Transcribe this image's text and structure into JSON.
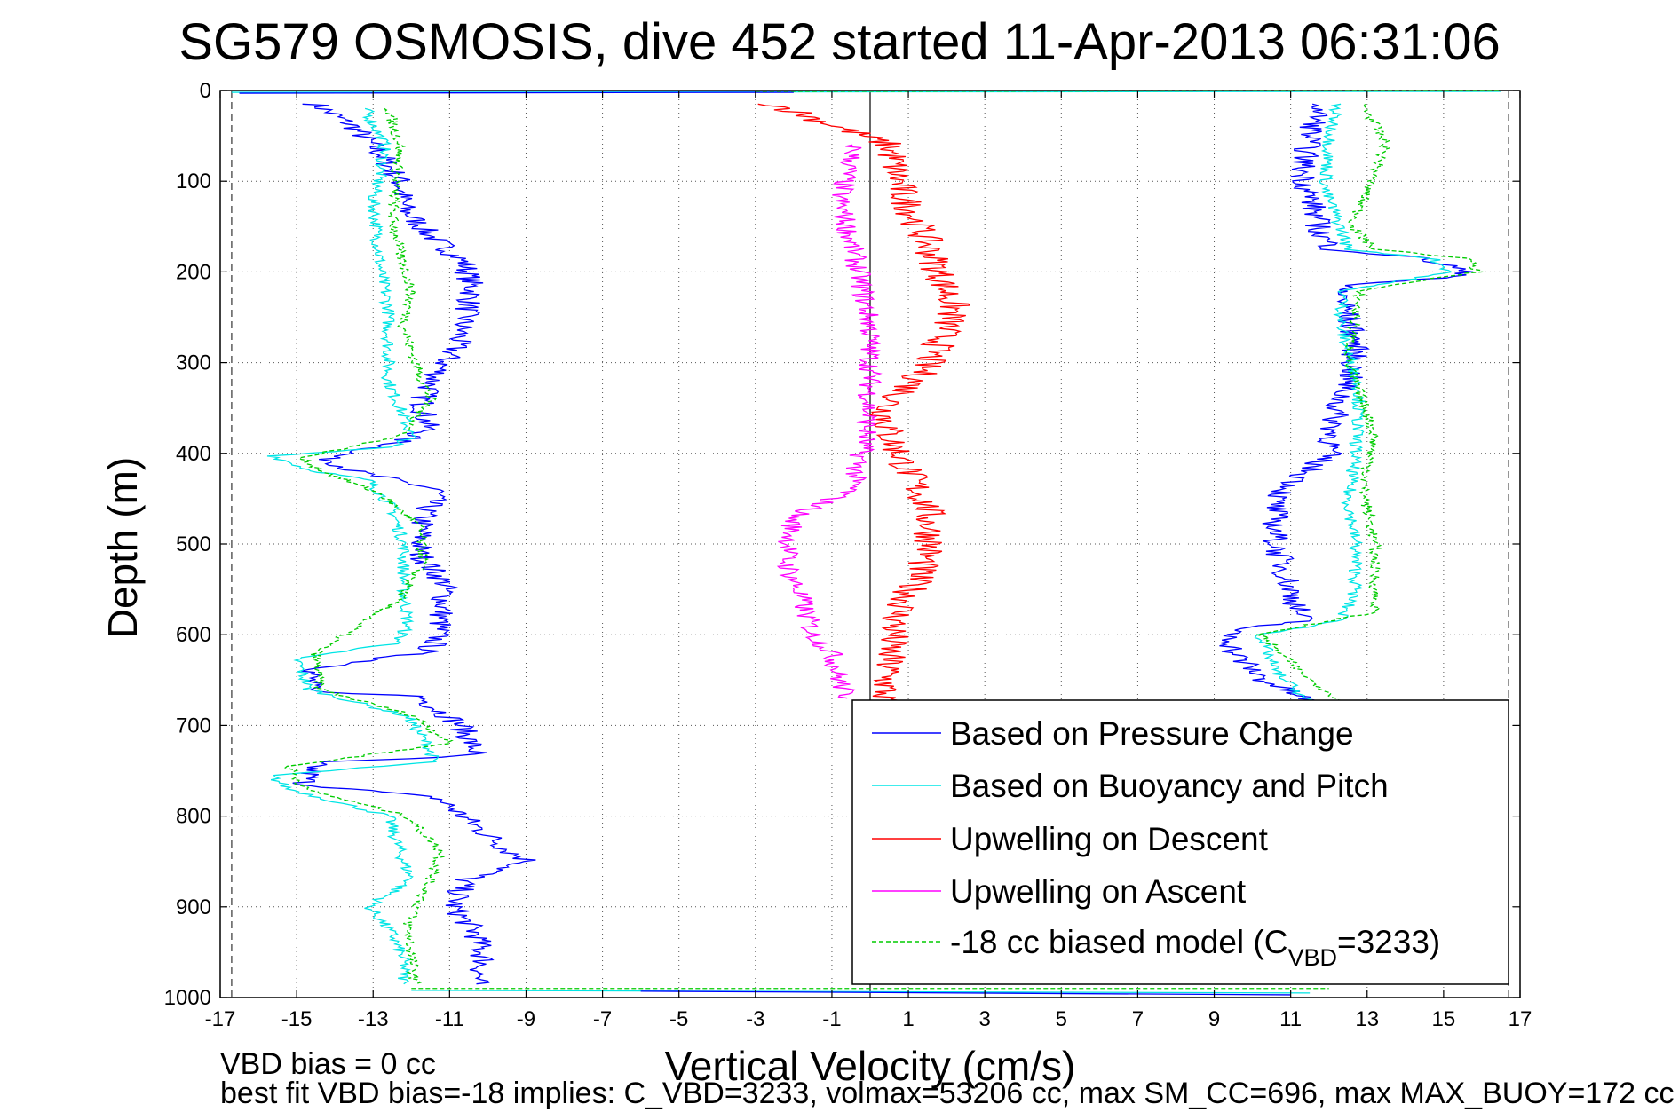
{
  "chart_data": {
    "type": "line",
    "title": "SG579 OSMOSIS, dive 452 started 11-Apr-2013 06:31:06",
    "xlabel": "Vertical Velocity (cm/s)",
    "ylabel": "Depth (m)",
    "xlim": [
      -17,
      17
    ],
    "ylim": [
      0,
      1000
    ],
    "y_reversed": true,
    "grid": true,
    "x_ticks": [
      -17,
      -15,
      -13,
      -11,
      -9,
      -7,
      -5,
      -3,
      -1,
      1,
      3,
      5,
      7,
      9,
      11,
      13,
      15,
      17
    ],
    "y_ticks": [
      0,
      100,
      200,
      300,
      400,
      500,
      600,
      700,
      800,
      900,
      1000
    ],
    "reference_line_x": 0,
    "dashed_bounds_x": [
      -16.7,
      16.7
    ],
    "legend_position": "bottom-right",
    "series": [
      {
        "name": "Based on Pressure Change",
        "color": "#0000ff",
        "style": "solid",
        "x": [
          -14.5,
          -13.5,
          -12.8,
          -12.3,
          -12.2,
          -11.5,
          -10.6,
          -10.4,
          -10.6,
          -10.8,
          -11.3,
          -11.7,
          -11.6,
          -12.5,
          -14.2,
          -13.5,
          -11.3,
          -11.7,
          -11.8,
          -11.1,
          -11.2,
          -11.3,
          -11.4,
          -11.6,
          -14.6,
          -14.7,
          -11.8,
          -10.7,
          -10.3,
          -11.2,
          -14.5,
          -14.8,
          -11.3,
          -10.5,
          -9.4,
          -8.9,
          -10.6,
          -10.9,
          -10.3,
          -10.1,
          -10.3
        ],
        "y": [
          15,
          40,
          70,
          100,
          130,
          160,
          190,
          220,
          250,
          280,
          310,
          340,
          375,
          390,
          405,
          420,
          440,
          470,
          510,
          545,
          575,
          600,
          610,
          618,
          640,
          662,
          668,
          700,
          730,
          735,
          740,
          765,
          780,
          805,
          840,
          850,
          870,
          900,
          930,
          960,
          985
        ]
      },
      {
        "name": "Based on Buoyancy and Pitch",
        "color": "#00e5e5",
        "style": "solid",
        "x": [
          -13.2,
          -12.7,
          -12.8,
          -13.0,
          -12.9,
          -12.8,
          -12.6,
          -12.6,
          -12.6,
          -12.3,
          -12.1,
          -12.0,
          -12.6,
          -15.6,
          -14.7,
          -13.1,
          -12.5,
          -12.2,
          -12.2,
          -12.1,
          -12.4,
          -15.0,
          -14.7,
          -12.1,
          -11.6,
          -11.4,
          -15.7,
          -15.2,
          -12.6,
          -12.3,
          -12.0,
          -13.1,
          -12.5,
          -12.2,
          -12.2
        ],
        "y": [
          20,
          60,
          90,
          120,
          160,
          200,
          240,
          280,
          320,
          350,
          370,
          383,
          393,
          403,
          418,
          430,
          460,
          500,
          550,
          590,
          610,
          625,
          660,
          690,
          720,
          740,
          755,
          770,
          800,
          840,
          870,
          900,
          930,
          960,
          985
        ]
      },
      {
        "name": "Upwelling on Descent",
        "color": "#ff0000",
        "style": "solid",
        "x": [
          -2.5,
          0.5,
          0.8,
          1.4,
          1.8,
          2.2,
          1.8,
          1.2,
          0.4,
          0.5,
          1.0,
          1.5,
          1.6,
          1.2,
          0.7,
          0.5,
          0.4,
          0.3
        ],
        "y": [
          15,
          60,
          110,
          160,
          200,
          240,
          280,
          320,
          350,
          380,
          420,
          460,
          500,
          540,
          580,
          620,
          660,
          680
        ]
      },
      {
        "name": "Upwelling on Ascent",
        "color": "#ff00ff",
        "style": "solid",
        "x": [
          -0.4,
          -0.8,
          -0.3,
          0.0,
          0.0,
          -0.1,
          -0.5,
          -2.0,
          -2.2,
          -1.8,
          -1.5,
          -1.0,
          -0.8,
          -0.6
        ],
        "y": [
          60,
          120,
          200,
          260,
          320,
          380,
          440,
          470,
          520,
          560,
          600,
          620,
          650,
          670
        ]
      },
      {
        "name": "-18 cc biased model (C",
        "color": "#00cc00",
        "style": "dashed",
        "x": [
          -12.6,
          -12.3,
          -12.4,
          -12.5,
          -12.3,
          -12.0,
          -12.2,
          -11.9,
          -11.5,
          -12.2,
          -14.9,
          -14.3,
          -12.8,
          -11.8,
          -11.7,
          -12.3,
          -14.5,
          -14.4,
          -11.9,
          -11.0,
          -15.2,
          -14.8,
          -12.1,
          -11.2,
          -11.6,
          -12.1,
          -11.9
        ],
        "y": [
          20,
          60,
          100,
          140,
          180,
          220,
          260,
          300,
          340,
          380,
          405,
          420,
          445,
          480,
          520,
          560,
          620,
          660,
          690,
          720,
          745,
          770,
          800,
          840,
          880,
          920,
          985
        ]
      }
    ],
    "ascent_series": [
      {
        "name": "Based on Pressure Change",
        "x": [
          11.8,
          11.5,
          11.3,
          11.6,
          11.8,
          12.1,
          14.4,
          15.3,
          15.6,
          12.3,
          12.5,
          12.7,
          12.6,
          12.2,
          12.0,
          10.6,
          10.6,
          11.0,
          11.3,
          9.4,
          9.5,
          10.3,
          11.6
        ],
        "y": [
          15,
          50,
          90,
          130,
          160,
          175,
          185,
          195,
          205,
          215,
          250,
          280,
          310,
          350,
          400,
          450,
          500,
          550,
          585,
          595,
          620,
          650,
          675
        ]
      },
      {
        "name": "Based on Buoyancy and Pitch",
        "x": [
          12.2,
          12.0,
          11.9,
          12.3,
          12.5,
          14.7,
          15.2,
          12.4,
          12.3,
          12.8,
          12.7,
          12.5,
          12.7,
          12.7,
          12.3,
          10.2,
          10.6,
          11.5
        ],
        "y": [
          15,
          60,
          110,
          150,
          175,
          185,
          200,
          220,
          260,
          330,
          400,
          450,
          500,
          550,
          585,
          600,
          640,
          675
        ]
      },
      {
        "name": "-18 cc biased model (C",
        "x": [
          12.9,
          13.5,
          13.1,
          12.6,
          13.2,
          15.6,
          15.9,
          12.8,
          12.5,
          13.2,
          12.9,
          13.2,
          13.2,
          10.2,
          11.5,
          12.6
        ],
        "y": [
          15,
          60,
          100,
          150,
          175,
          185,
          200,
          220,
          300,
          380,
          440,
          500,
          575,
          600,
          650,
          680
        ]
      }
    ],
    "legend": {
      "entries": [
        {
          "label": "Based on Pressure Change",
          "color": "#0000ff",
          "dashed": false
        },
        {
          "label": "Based on Buoyancy and Pitch",
          "color": "#00e5e5",
          "dashed": false
        },
        {
          "label": "Upwelling on Descent",
          "color": "#ff0000",
          "dashed": false
        },
        {
          "label": "Upwelling on Ascent",
          "color": "#ff00ff",
          "dashed": false
        },
        {
          "label": "-18 cc biased model (C",
          "sub": "VBD",
          "suffix": "=3233)",
          "color": "#00cc00",
          "dashed": true
        }
      ]
    },
    "annotations": [
      "VBD bias = 0 cc",
      "best fit VBD bias=-18 implies: C_VBD=3233, volmax=53206 cc, max SM_CC=696, max MAX_BUOY=172 cc"
    ]
  }
}
